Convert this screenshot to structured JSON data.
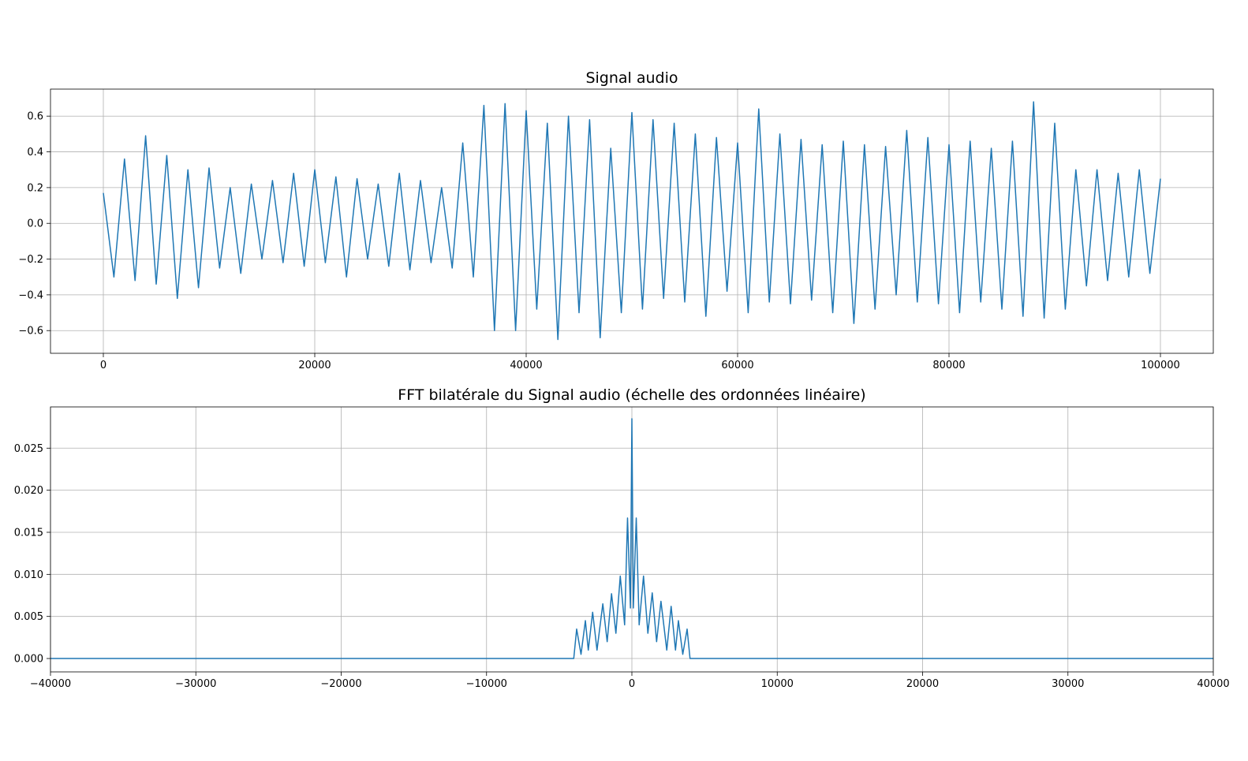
{
  "chart_data": [
    {
      "type": "line",
      "title": "Signal audio",
      "color": "#1f77b4",
      "grid": true,
      "x": [
        0,
        1000,
        2000,
        3000,
        4000,
        5000,
        6000,
        7000,
        8000,
        9000,
        10000,
        11000,
        12000,
        13000,
        14000,
        15000,
        16000,
        17000,
        18000,
        19000,
        20000,
        21000,
        22000,
        23000,
        24000,
        25000,
        26000,
        27000,
        28000,
        29000,
        30000,
        31000,
        32000,
        33000,
        34000,
        35000,
        36000,
        37000,
        38000,
        39000,
        40000,
        41000,
        42000,
        43000,
        44000,
        45000,
        46000,
        47000,
        48000,
        49000,
        50000,
        51000,
        52000,
        53000,
        54000,
        55000,
        56000,
        57000,
        58000,
        59000,
        60000,
        61000,
        62000,
        63000,
        64000,
        65000,
        66000,
        67000,
        68000,
        69000,
        70000,
        71000,
        72000,
        73000,
        74000,
        75000,
        76000,
        77000,
        78000,
        79000,
        80000,
        81000,
        82000,
        83000,
        84000,
        85000,
        86000,
        87000,
        88000,
        89000,
        90000,
        91000,
        92000,
        93000,
        94000,
        95000,
        96000,
        97000,
        98000,
        99000,
        100000
      ],
      "values": [
        0.17,
        -0.3,
        0.36,
        -0.32,
        0.49,
        -0.34,
        0.38,
        -0.42,
        0.3,
        -0.36,
        0.31,
        -0.25,
        0.2,
        -0.28,
        0.22,
        -0.2,
        0.24,
        -0.22,
        0.28,
        -0.24,
        0.3,
        -0.22,
        0.26,
        -0.3,
        0.25,
        -0.2,
        0.22,
        -0.24,
        0.28,
        -0.26,
        0.24,
        -0.22,
        0.2,
        -0.25,
        0.45,
        -0.3,
        0.66,
        -0.6,
        0.67,
        -0.6,
        0.63,
        -0.48,
        0.56,
        -0.65,
        0.6,
        -0.5,
        0.58,
        -0.64,
        0.42,
        -0.5,
        0.62,
        -0.48,
        0.58,
        -0.42,
        0.56,
        -0.44,
        0.5,
        -0.52,
        0.48,
        -0.38,
        0.45,
        -0.5,
        0.64,
        -0.44,
        0.5,
        -0.45,
        0.47,
        -0.43,
        0.44,
        -0.5,
        0.46,
        -0.56,
        0.44,
        -0.48,
        0.43,
        -0.4,
        0.52,
        -0.44,
        0.48,
        -0.45,
        0.44,
        -0.5,
        0.46,
        -0.44,
        0.42,
        -0.48,
        0.46,
        -0.52,
        0.68,
        -0.53,
        0.56,
        -0.48,
        0.3,
        -0.35,
        0.3,
        -0.32,
        0.28,
        -0.3,
        0.3,
        -0.28,
        0.25
      ],
      "xlim": [
        -5000,
        105000
      ],
      "ylim": [
        -0.727,
        0.751
      ],
      "xticks": [
        0,
        20000,
        40000,
        60000,
        80000,
        100000
      ],
      "yticks": [
        {
          "value": -0.6,
          "label": "−0.6"
        },
        {
          "value": -0.4,
          "label": "−0.4"
        },
        {
          "value": -0.2,
          "label": "−0.2"
        },
        {
          "value": 0,
          "label": "0.0"
        },
        0.2,
        0.4,
        0.6
      ]
    },
    {
      "type": "line",
      "title": "FFT bilatérale du Signal audio (échelle des ordonnées linéaire)",
      "color": "#1f77b4",
      "grid": true,
      "x": [
        -40000,
        -4000,
        -3800,
        -3500,
        -3200,
        -3000,
        -2700,
        -2400,
        -2000,
        -1700,
        -1400,
        -1100,
        -800,
        -500,
        -300,
        -100,
        0,
        100,
        300,
        500,
        800,
        1100,
        1400,
        1700,
        2000,
        2400,
        2700,
        3000,
        3200,
        3500,
        3800,
        4000,
        40000
      ],
      "values": [
        0,
        0,
        0.0035,
        0.0005,
        0.0045,
        0.001,
        0.0055,
        0.001,
        0.0065,
        0.002,
        0.0077,
        0.003,
        0.0098,
        0.004,
        0.0167,
        0.006,
        0.0285,
        0.006,
        0.0167,
        0.004,
        0.0098,
        0.003,
        0.0078,
        0.002,
        0.0068,
        0.001,
        0.0062,
        0.001,
        0.0045,
        0.0005,
        0.0035,
        0,
        0
      ],
      "xlim": [
        -40000,
        40000
      ],
      "ylim": [
        -0.00159,
        0.0299
      ],
      "xticks": [
        {
          "value": -40000,
          "label": "−40000"
        },
        {
          "value": -30000,
          "label": "−30000"
        },
        {
          "value": -20000,
          "label": "−20000"
        },
        {
          "value": -10000,
          "label": "−10000"
        },
        0,
        10000,
        20000,
        30000,
        40000
      ],
      "yticks": [
        {
          "value": 0,
          "label": "0.000"
        },
        0.005,
        {
          "value": 0.01,
          "label": "0.010"
        },
        0.015,
        {
          "value": 0.02,
          "label": "0.020"
        },
        0.025
      ]
    }
  ]
}
